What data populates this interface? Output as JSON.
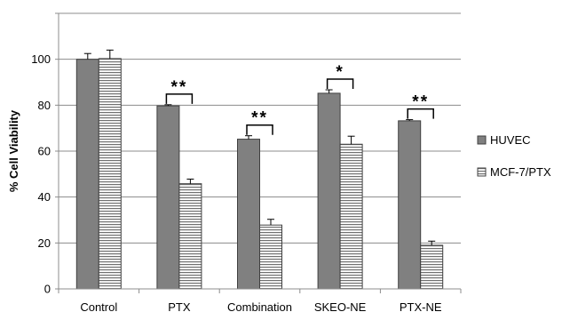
{
  "chart_data": {
    "type": "bar",
    "categories": [
      "Control",
      "PTX",
      "Combination",
      "SKEO-NE",
      "PTX-NE"
    ],
    "series": [
      {
        "name": "HUVEC",
        "values": [
          100,
          79.7,
          65.2,
          85.2,
          73.2
        ],
        "errors": [
          2.5,
          0.5,
          1.5,
          1.5,
          0.5
        ],
        "fill": "solid",
        "color": "#808080"
      },
      {
        "name": "MCF-7/PTX",
        "values": [
          100.3,
          45.8,
          27.8,
          63.0,
          19.0
        ],
        "errors": [
          3.7,
          2.0,
          2.5,
          3.5,
          1.8
        ],
        "fill": "horizontal-stripes",
        "color": "#d0d0d0"
      }
    ],
    "significance": [
      "",
      "**",
      "**",
      "*",
      "**"
    ],
    "ylabel": "% Cell Viability",
    "xlabel": "",
    "ylim": [
      0,
      120
    ],
    "yticks": [
      0,
      20,
      40,
      60,
      80,
      100,
      120
    ],
    "yticklabels": [
      "0",
      "20",
      "40",
      "60",
      "80",
      "100",
      ""
    ],
    "grid": true,
    "legend_position": "right"
  }
}
